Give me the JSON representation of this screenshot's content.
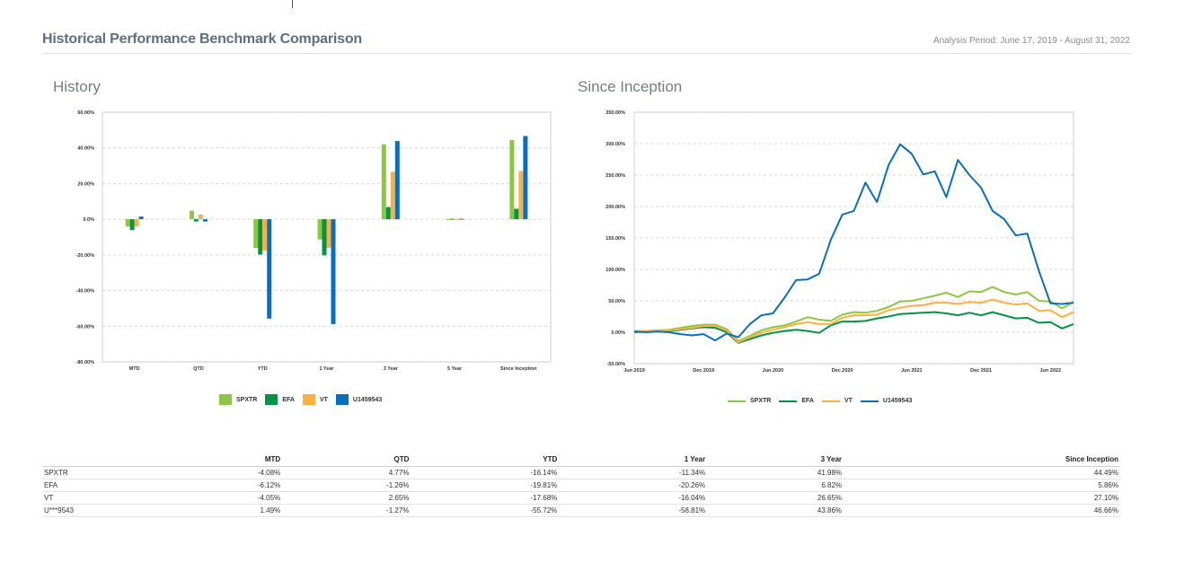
{
  "header": {
    "title": "Historical Performance Benchmark Comparison",
    "analysis_period": "Analysis Period: June 17, 2019 - August 31, 2022"
  },
  "colors": {
    "SPXTR": "#8dc63f",
    "EFA": "#009444",
    "VT": "#fbb040",
    "U1459543": "#0a6ebd"
  },
  "chart_data": [
    {
      "type": "bar",
      "title": "History",
      "categories": [
        "MTD",
        "QTD",
        "YTD",
        "1 Year",
        "3 Year",
        "5 Year",
        "Since Inception"
      ],
      "series": [
        {
          "name": "SPXTR",
          "values": [
            -4.08,
            4.77,
            -16.14,
            -11.34,
            41.98,
            0.0,
            44.49
          ]
        },
        {
          "name": "EFA",
          "values": [
            -6.12,
            -1.26,
            -19.81,
            -20.26,
            6.82,
            0.0,
            5.86
          ]
        },
        {
          "name": "VT",
          "values": [
            -4.05,
            2.65,
            -17.68,
            -16.04,
            26.65,
            0.0,
            27.1
          ]
        },
        {
          "name": "U1459543",
          "values": [
            1.49,
            -1.27,
            -55.72,
            -58.81,
            43.86,
            0.0,
            46.66
          ]
        }
      ],
      "ylim": [
        -80,
        60
      ],
      "yticks": [
        "60.00%",
        "40.00%",
        "20.00%",
        "0.0%",
        "-20.00%",
        "-40.00%",
        "-60.00%",
        "-80.00%"
      ],
      "grid": true,
      "legend": "bottom"
    },
    {
      "type": "line",
      "title": "Since Inception",
      "xticks": [
        "Jun 2019",
        "Dec 2019",
        "Jun 2020",
        "Dec 2020",
        "Jun 2021",
        "Dec 2021",
        "Jun 2022"
      ],
      "yticks": [
        "350.00%",
        "300.00%",
        "250.00%",
        "200.00%",
        "150.00%",
        "100.00%",
        "50.00%",
        "0.00%",
        "-50.00%"
      ],
      "ylim": [
        -50,
        350
      ],
      "grid": true,
      "legend": "bottom",
      "x_months": [
        0,
        1,
        2,
        3,
        4,
        5,
        6,
        7,
        8,
        9,
        10,
        11,
        12,
        13,
        14,
        15,
        16,
        17,
        18,
        19,
        20,
        21,
        22,
        23,
        24,
        25,
        26,
        27,
        28,
        29,
        30,
        31,
        32,
        33,
        34,
        35,
        36,
        37,
        38
      ],
      "series": [
        {
          "name": "SPXTR",
          "values": [
            2,
            2,
            3,
            4,
            7,
            10,
            12,
            12,
            5,
            -14,
            -6,
            3,
            8,
            11,
            17,
            24,
            20,
            18,
            28,
            32,
            31,
            34,
            40,
            49,
            50,
            54,
            58,
            63,
            56,
            65,
            64,
            72,
            64,
            60,
            64,
            50,
            49,
            38,
            48
          ]
        },
        {
          "name": "EFA",
          "values": [
            0,
            1,
            2,
            2,
            4,
            6,
            8,
            7,
            0,
            -17,
            -11,
            -5,
            -1,
            2,
            4,
            2,
            -1,
            11,
            17,
            17,
            18,
            22,
            25,
            29,
            30,
            31,
            32,
            30,
            27,
            31,
            27,
            32,
            27,
            22,
            23,
            15,
            16,
            6,
            13
          ]
        },
        {
          "name": "VT",
          "values": [
            1,
            2,
            3,
            3,
            5,
            7,
            10,
            10,
            3,
            -16,
            -8,
            -1,
            4,
            8,
            13,
            16,
            13,
            13,
            23,
            27,
            27,
            28,
            35,
            39,
            42,
            43,
            47,
            47,
            45,
            48,
            47,
            52,
            47,
            44,
            46,
            34,
            35,
            24,
            32
          ]
        },
        {
          "name": "U1459543",
          "values": [
            1,
            0,
            1,
            0,
            -3,
            -5,
            -3,
            -13,
            -2,
            -8,
            13,
            27,
            30,
            55,
            83,
            84,
            93,
            147,
            187,
            193,
            238,
            207,
            266,
            299,
            284,
            251,
            256,
            215,
            274,
            250,
            230,
            193,
            180,
            154,
            157,
            98,
            46,
            45,
            47
          ]
        }
      ]
    }
  ],
  "table": {
    "columns": [
      "MTD",
      "QTD",
      "YTD",
      "1 Year",
      "3 Year",
      "Since Inception"
    ],
    "rows": [
      {
        "name": "SPXTR",
        "cells": [
          "-4.08%",
          "4.77%",
          "-16.14%",
          "-11.34%",
          "41.98%",
          "44.49%"
        ]
      },
      {
        "name": "EFA",
        "cells": [
          "-6.12%",
          "-1.26%",
          "-19.81%",
          "-20.26%",
          "6.82%",
          "5.86%"
        ]
      },
      {
        "name": "VT",
        "cells": [
          "-4.05%",
          "2.65%",
          "-17.68%",
          "-16.04%",
          "26.65%",
          "27.10%"
        ]
      },
      {
        "name": "U***9543",
        "cells": [
          "1.49%",
          "-1.27%",
          "-55.72%",
          "-58.81%",
          "43.86%",
          "46.66%"
        ]
      }
    ]
  }
}
